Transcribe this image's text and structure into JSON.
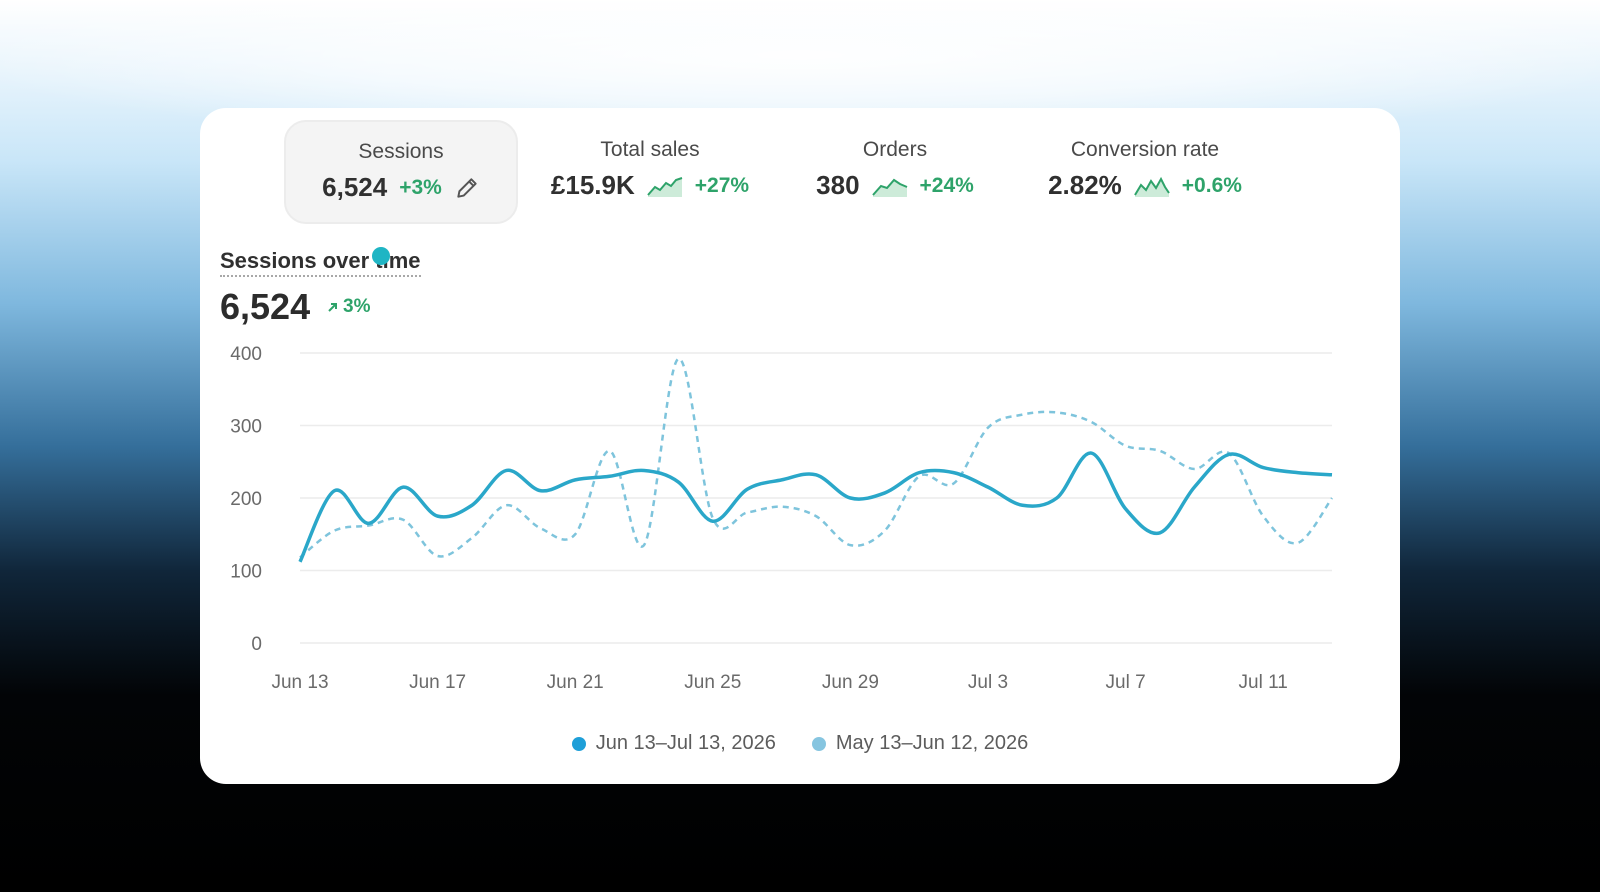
{
  "metrics": [
    {
      "label": "Sessions",
      "value": "6,524",
      "delta": "+3%",
      "icon": "pencil-icon"
    },
    {
      "label": "Total sales",
      "value": "£15.9K",
      "delta": "+27%",
      "icon": "sparkline-icon"
    },
    {
      "label": "Orders",
      "value": "380",
      "delta": "+24%",
      "icon": "sparkline-icon"
    },
    {
      "label": "Conversion rate",
      "value": "2.82%",
      "delta": "+0.6%",
      "icon": "sparkline-icon"
    }
  ],
  "panel": {
    "title": "Sessions over time",
    "value": "6,524",
    "delta": "3%",
    "delta_icon": "arrow-up-right-icon"
  },
  "colors": {
    "accent": "#2aa7c9",
    "previous": "#7ec4dc",
    "positive": "#2ea36a",
    "legend_current": "#1e9fd8",
    "legend_previous": "#86c5e0"
  },
  "chart_data": {
    "type": "line",
    "x_ticks": [
      "Jun 13",
      "Jun 17",
      "Jun 21",
      "Jun 25",
      "Jun 29",
      "Jul 3",
      "Jul 7",
      "Jul 11"
    ],
    "y_ticks": [
      0,
      100,
      200,
      300,
      400
    ],
    "ylim": [
      0,
      400
    ],
    "grid": true,
    "legend_position": "bottom",
    "series": [
      {
        "name": "Jun 13–Jul 13, 2026",
        "style": "solid",
        "x": [
          "Jun 13",
          "Jun 14",
          "Jun 15",
          "Jun 16",
          "Jun 17",
          "Jun 18",
          "Jun 19",
          "Jun 20",
          "Jun 21",
          "Jun 22",
          "Jun 23",
          "Jun 24",
          "Jun 25",
          "Jun 26",
          "Jun 27",
          "Jun 28",
          "Jun 29",
          "Jun 30",
          "Jul 1",
          "Jul 2",
          "Jul 3",
          "Jul 4",
          "Jul 5",
          "Jul 6",
          "Jul 7",
          "Jul 8",
          "Jul 9",
          "Jul 10",
          "Jul 11",
          "Jul 12",
          "Jul 13"
        ],
        "values": [
          112,
          210,
          165,
          215,
          175,
          190,
          238,
          210,
          225,
          230,
          238,
          222,
          168,
          212,
          225,
          232,
          200,
          207,
          235,
          235,
          215,
          190,
          200,
          262,
          185,
          152,
          215,
          260,
          242,
          235,
          232
        ]
      },
      {
        "name": "May 13–Jun 12, 2026",
        "style": "dashed",
        "x": [
          "Jun 13",
          "Jun 14",
          "Jun 15",
          "Jun 16",
          "Jun 17",
          "Jun 18",
          "Jun 19",
          "Jun 20",
          "Jun 21",
          "Jun 22",
          "Jun 23",
          "Jun 24",
          "Jun 25",
          "Jun 26",
          "Jun 27",
          "Jun 28",
          "Jun 29",
          "Jun 30",
          "Jul 1",
          "Jul 2",
          "Jul 3",
          "Jul 4",
          "Jul 5",
          "Jul 6",
          "Jul 7",
          "Jul 8",
          "Jul 9",
          "Jul 10",
          "Jul 11",
          "Jul 12",
          "Jul 13"
        ],
        "values": [
          118,
          155,
          162,
          170,
          120,
          145,
          190,
          158,
          150,
          265,
          135,
          392,
          172,
          180,
          188,
          175,
          135,
          155,
          230,
          220,
          297,
          315,
          318,
          305,
          272,
          265,
          240,
          262,
          175,
          138,
          200
        ]
      }
    ]
  }
}
